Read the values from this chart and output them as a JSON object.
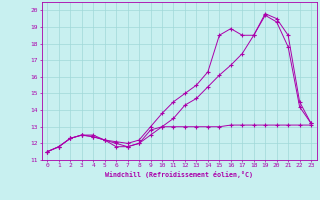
{
  "xlabel": "Windchill (Refroidissement éolien,°C)",
  "bg_color": "#c8f0f0",
  "line_color": "#aa00aa",
  "grid_color": "#a0d8d8",
  "xlim": [
    -0.5,
    23.5
  ],
  "ylim": [
    11,
    20.5
  ],
  "xticks": [
    0,
    1,
    2,
    3,
    4,
    5,
    6,
    7,
    8,
    9,
    10,
    11,
    12,
    13,
    14,
    15,
    16,
    17,
    18,
    19,
    20,
    21,
    22,
    23
  ],
  "yticks": [
    11,
    12,
    13,
    14,
    15,
    16,
    17,
    18,
    19,
    20
  ],
  "line1": {
    "x": [
      0,
      1,
      2,
      3,
      4,
      5,
      6,
      7,
      8,
      9,
      10,
      11,
      12,
      13,
      14,
      15,
      16,
      17,
      18,
      19,
      20,
      21,
      22,
      23
    ],
    "y": [
      11.5,
      11.8,
      12.3,
      12.5,
      12.5,
      12.2,
      11.8,
      11.8,
      12.0,
      12.5,
      13.0,
      13.5,
      14.3,
      14.7,
      15.4,
      16.1,
      16.7,
      17.4,
      18.5,
      19.7,
      19.3,
      17.8,
      14.2,
      13.2
    ]
  },
  "line2": {
    "x": [
      0,
      1,
      2,
      3,
      4,
      5,
      6,
      7,
      8,
      9,
      10,
      11,
      12,
      13,
      14,
      15,
      16,
      17,
      18,
      19,
      20,
      21,
      22,
      23
    ],
    "y": [
      11.5,
      11.8,
      12.3,
      12.5,
      12.4,
      12.2,
      12.1,
      12.0,
      12.2,
      13.0,
      13.8,
      14.5,
      15.0,
      15.5,
      16.3,
      18.5,
      18.9,
      18.5,
      18.5,
      19.8,
      19.5,
      18.5,
      14.5,
      13.2
    ]
  },
  "line3": {
    "x": [
      0,
      1,
      2,
      3,
      4,
      5,
      6,
      7,
      8,
      9,
      10,
      11,
      12,
      13,
      14,
      15,
      16,
      17,
      18,
      19,
      20,
      21,
      22,
      23
    ],
    "y": [
      11.5,
      11.8,
      12.3,
      12.5,
      12.4,
      12.2,
      12.0,
      11.8,
      12.0,
      12.8,
      13.0,
      13.0,
      13.0,
      13.0,
      13.0,
      13.0,
      13.1,
      13.1,
      13.1,
      13.1,
      13.1,
      13.1,
      13.1,
      13.1
    ]
  }
}
